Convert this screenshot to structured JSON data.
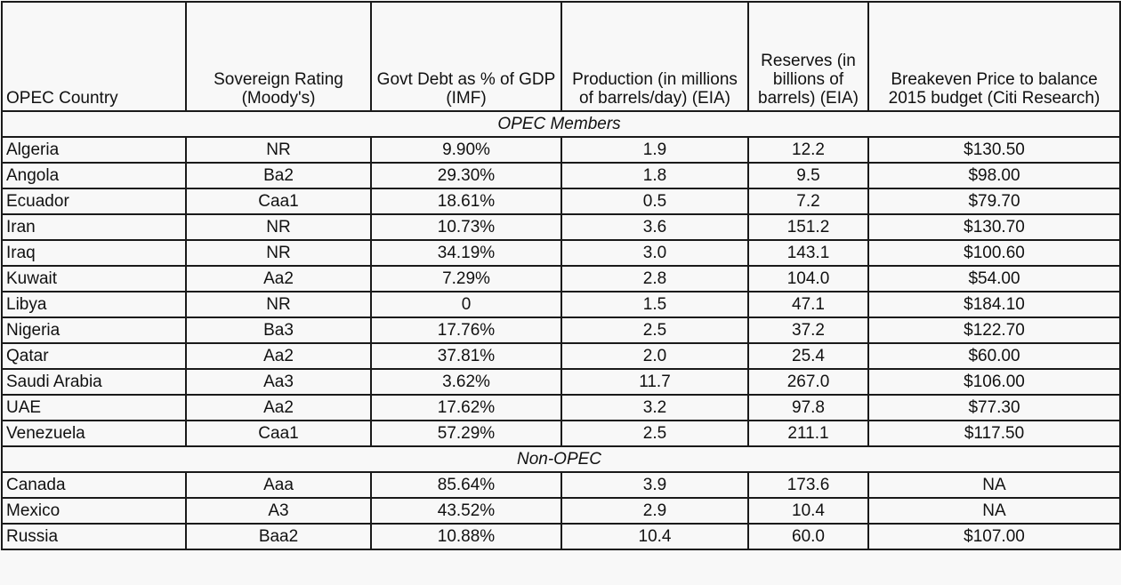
{
  "headers": [
    "OPEC Country",
    "Sovereign Rating (Moody's)",
    "Govt Debt as % of GDP (IMF)",
    "Production (in millions of barrels/day) (EIA)",
    "Reserves (in billions of barrels) (EIA)",
    "Breakeven Price to balance 2015 budget (Citi Research)"
  ],
  "sections": [
    {
      "label": "OPEC Members",
      "rows": [
        [
          "Algeria",
          "NR",
          "9.90%",
          "1.9",
          "12.2",
          "$130.50"
        ],
        [
          "Angola",
          "Ba2",
          "29.30%",
          "1.8",
          "9.5",
          "$98.00"
        ],
        [
          "Ecuador",
          "Caa1",
          "18.61%",
          "0.5",
          "7.2",
          "$79.70"
        ],
        [
          "Iran",
          "NR",
          "10.73%",
          "3.6",
          "151.2",
          "$130.70"
        ],
        [
          "Iraq",
          "NR",
          "34.19%",
          "3.0",
          "143.1",
          "$100.60"
        ],
        [
          "Kuwait",
          "Aa2",
          "7.29%",
          "2.8",
          "104.0",
          "$54.00"
        ],
        [
          "Libya",
          "NR",
          "0",
          "1.5",
          "47.1",
          "$184.10"
        ],
        [
          "Nigeria",
          "Ba3",
          "17.76%",
          "2.5",
          "37.2",
          "$122.70"
        ],
        [
          "Qatar",
          "Aa2",
          "37.81%",
          "2.0",
          "25.4",
          "$60.00"
        ],
        [
          "Saudi Arabia",
          "Aa3",
          "3.62%",
          "11.7",
          "267.0",
          "$106.00"
        ],
        [
          "UAE",
          "Aa2",
          "17.62%",
          "3.2",
          "97.8",
          "$77.30"
        ],
        [
          "Venezuela",
          "Caa1",
          "57.29%",
          "2.5",
          "211.1",
          "$117.50"
        ]
      ]
    },
    {
      "label": "Non-OPEC",
      "rows": [
        [
          "Canada",
          "Aaa",
          "85.64%",
          "3.9",
          "173.6",
          "NA"
        ],
        [
          "Mexico",
          "A3",
          "43.52%",
          "2.9",
          "10.4",
          "NA"
        ],
        [
          "Russia",
          "Baa2",
          "10.88%",
          "10.4",
          "60.0",
          "$107.00"
        ]
      ]
    }
  ]
}
